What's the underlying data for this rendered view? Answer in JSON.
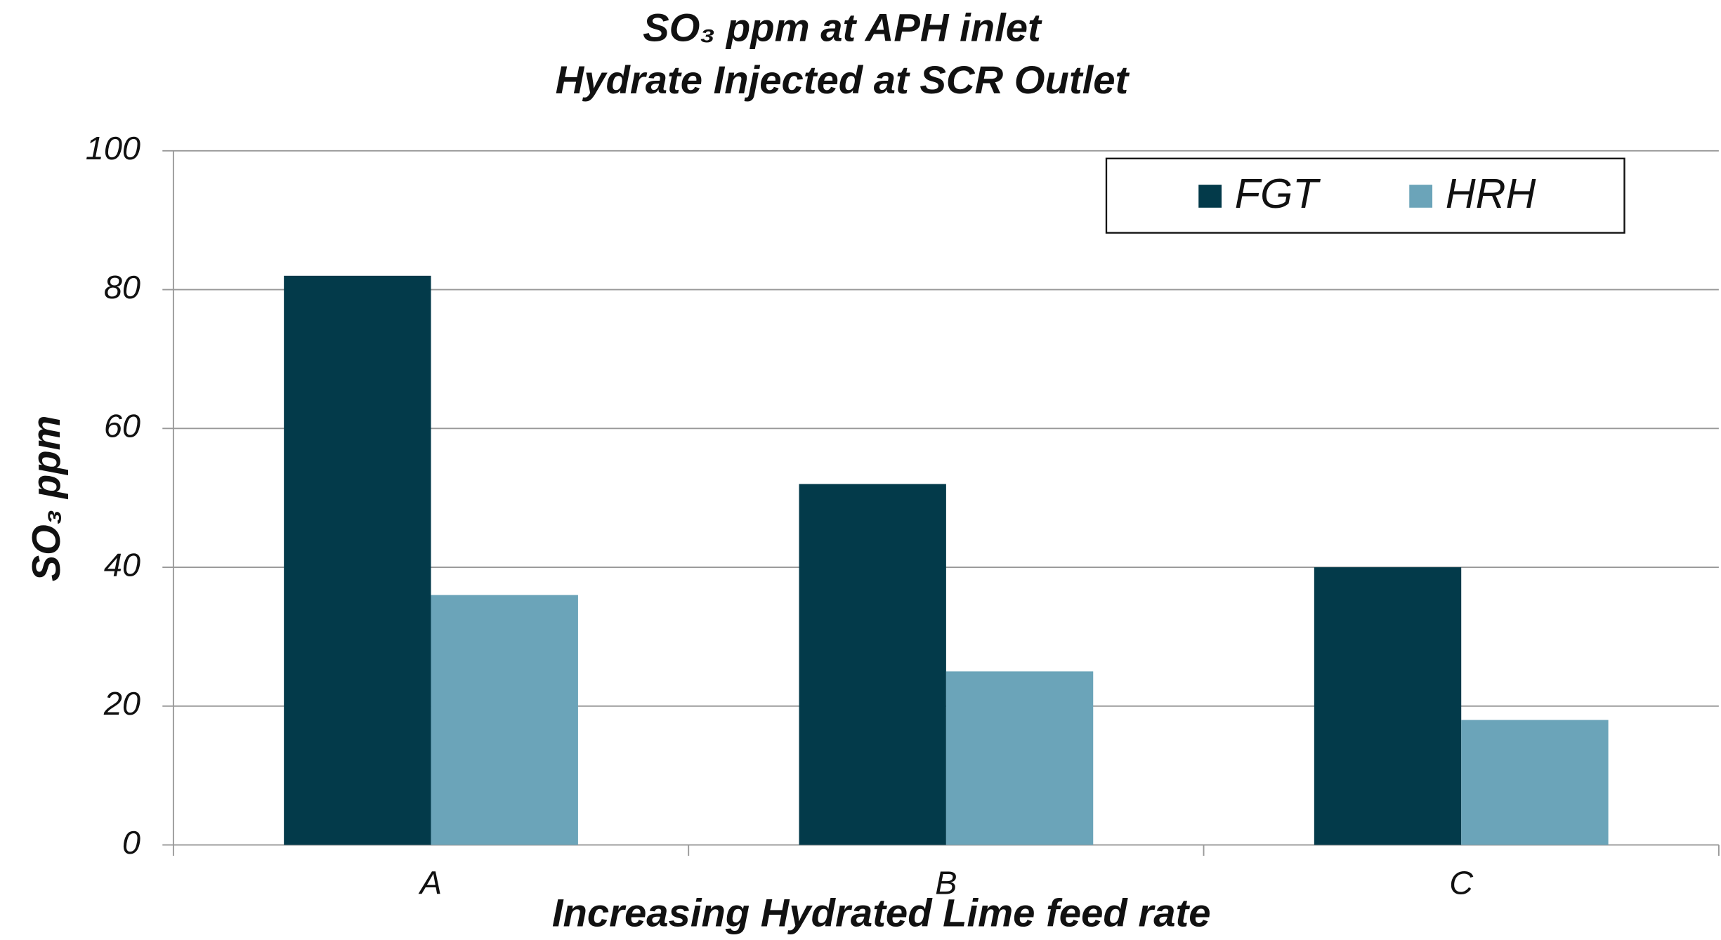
{
  "chart_data": {
    "type": "bar",
    "title": "SO₃ ppm at APH inlet",
    "subtitle": "Hydrate Injected at SCR Outlet",
    "x_label": "Increasing Hydrated Lime feed rate",
    "y_label": "SO₃ ppm",
    "categories": [
      "A",
      "B",
      "C"
    ],
    "series": [
      {
        "name": "FGT",
        "color": "#033a4a",
        "values": [
          82,
          52,
          40
        ]
      },
      {
        "name": "HRH",
        "color": "#6ba4b9",
        "values": [
          36,
          25,
          18
        ]
      }
    ],
    "ylim": [
      0,
      100
    ],
    "yticks": [
      0,
      20,
      40,
      60,
      80,
      100
    ],
    "grid": true,
    "legend": "upper right"
  }
}
